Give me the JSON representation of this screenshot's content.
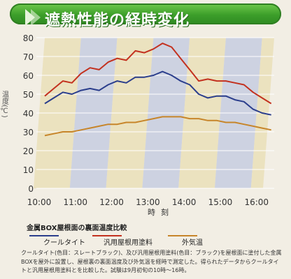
{
  "banner": {
    "title": "遮熱性能の経時変化"
  },
  "chart_data": {
    "type": "line",
    "title": "",
    "ylabel": "温度(℃)",
    "xlabel": "時刻",
    "ylim": [
      0,
      80
    ],
    "yticks": [
      0,
      10,
      20,
      30,
      40,
      50,
      60,
      70,
      80
    ],
    "xlim": [
      "10:00",
      "16:20"
    ],
    "xticks": [
      "10:00",
      "11:00",
      "12:00",
      "13:00",
      "14:00",
      "15:00",
      "16:00"
    ],
    "grid": true,
    "background_bands": [
      "#eadfb8",
      "#c7cde0"
    ],
    "series": [
      {
        "name": "汎用屋根用塗料",
        "color": "#c3311f",
        "x": [
          "10:00",
          "10:15",
          "10:30",
          "10:45",
          "11:00",
          "11:15",
          "11:30",
          "11:45",
          "12:00",
          "12:15",
          "12:30",
          "12:45",
          "13:00",
          "13:15",
          "13:30",
          "13:45",
          "14:00",
          "14:15",
          "14:30",
          "14:45",
          "15:00",
          "15:15",
          "15:30",
          "15:45",
          "16:00",
          "16:15"
        ],
        "values": [
          49,
          53,
          57,
          56,
          61,
          64,
          63,
          67,
          69,
          68,
          73,
          72,
          74,
          77,
          75,
          69,
          63,
          57,
          58,
          57,
          57,
          56,
          55,
          51,
          48,
          45
        ]
      },
      {
        "name": "クールタイト",
        "color": "#2b3e8c",
        "x": [
          "10:00",
          "10:15",
          "10:30",
          "10:45",
          "11:00",
          "11:15",
          "11:30",
          "11:45",
          "12:00",
          "12:15",
          "12:30",
          "12:45",
          "13:00",
          "13:15",
          "13:30",
          "13:45",
          "14:00",
          "14:15",
          "14:30",
          "14:45",
          "15:00",
          "15:15",
          "15:30",
          "15:45",
          "16:00",
          "16:15"
        ],
        "values": [
          45,
          48,
          51,
          50,
          52,
          53,
          52,
          55,
          57,
          56,
          59,
          59,
          60,
          62,
          60,
          57,
          55,
          50,
          48,
          49,
          49,
          47,
          46,
          42,
          40,
          39
        ]
      },
      {
        "name": "外気温",
        "color": "#c7852a",
        "x": [
          "10:00",
          "10:15",
          "10:30",
          "10:45",
          "11:00",
          "11:15",
          "11:30",
          "11:45",
          "12:00",
          "12:15",
          "12:30",
          "12:45",
          "13:00",
          "13:15",
          "13:30",
          "13:45",
          "14:00",
          "14:15",
          "14:30",
          "14:45",
          "15:00",
          "15:15",
          "15:30",
          "15:45",
          "16:00",
          "16:15"
        ],
        "values": [
          28,
          29,
          30,
          30,
          31,
          32,
          33,
          34,
          34,
          35,
          35,
          36,
          37,
          38,
          38,
          38,
          37,
          37,
          36,
          36,
          35,
          35,
          34,
          33,
          32,
          31
        ]
      }
    ]
  },
  "legend": {
    "title": "金属BOX屋根面の裏面温度比較",
    "items": [
      {
        "label": "クールタイト",
        "color": "#2b3e8c"
      },
      {
        "label": "汎用屋根用塗料",
        "color": "#c3311f"
      },
      {
        "label": "外気温",
        "color": "#c7852a"
      }
    ]
  },
  "note": "クールタイト(色目：スレートブラック)、及び汎用屋根用塗料(色目：ブラック)を屋根面に塗付した金属BOXを屋外に設置し、屋根裏の裏面温度及び外気温を経時で測定した。得られたデータからクールタイトと汎用屋根用塗料とを比較した。試験は9月初旬の10時〜16時。"
}
